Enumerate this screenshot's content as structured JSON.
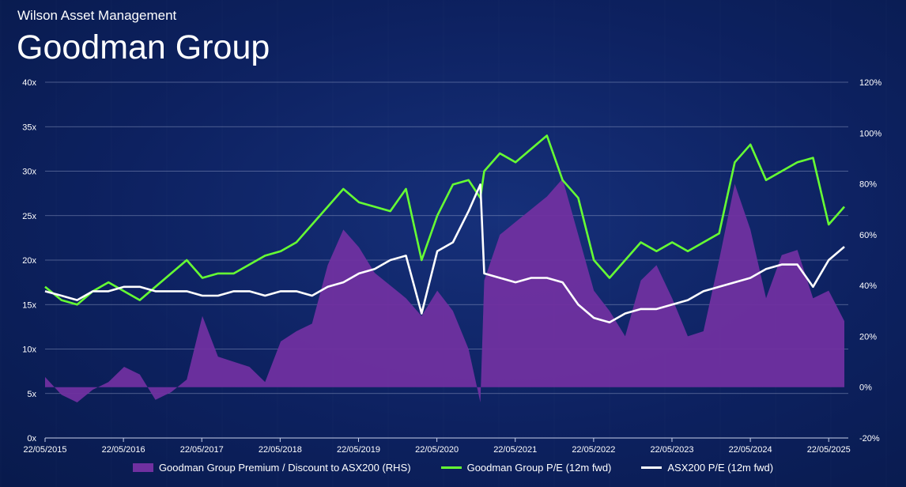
{
  "header": {
    "firm": "Wilson Asset Management",
    "title": "Goodman Group"
  },
  "colors": {
    "premium": "#7030a0",
    "gmg_pe": "#66ff33",
    "asx_pe": "#ffffff",
    "grid": "#9aa6cc"
  },
  "chart_data": {
    "type": "line",
    "x_ticks": [
      "22/05/2015",
      "22/05/2016",
      "22/05/2017",
      "22/05/2018",
      "22/05/2019",
      "22/05/2020",
      "22/05/2021",
      "22/05/2022",
      "22/05/2023",
      "22/05/2024",
      "22/05/2025"
    ],
    "x_range": [
      2015.39,
      2025.65
    ],
    "y_left": {
      "ticks": [
        "0x",
        "5x",
        "10x",
        "15x",
        "20x",
        "25x",
        "30x",
        "35x",
        "40x"
      ],
      "range": [
        0,
        40
      ]
    },
    "y_right": {
      "ticks": [
        "-20%",
        "0%",
        "20%",
        "40%",
        "60%",
        "80%",
        "100%",
        "120%"
      ],
      "range": [
        -20,
        120
      ]
    },
    "grid": true,
    "legend_position": "bottom",
    "series": [
      {
        "name": "Goodman Group Premium / Discount to ASX200 (RHS)",
        "type": "area",
        "axis": "right",
        "x": [
          2015.39,
          2015.6,
          2015.8,
          2016.0,
          2016.2,
          2016.4,
          2016.6,
          2016.8,
          2017.0,
          2017.2,
          2017.4,
          2017.6,
          2017.8,
          2018.0,
          2018.2,
          2018.4,
          2018.6,
          2018.8,
          2019.0,
          2019.2,
          2019.4,
          2019.6,
          2019.8,
          2020.0,
          2020.2,
          2020.4,
          2020.6,
          2020.8,
          2020.95,
          2021.0,
          2021.2,
          2021.4,
          2021.6,
          2021.8,
          2022.0,
          2022.2,
          2022.4,
          2022.6,
          2022.8,
          2023.0,
          2023.2,
          2023.4,
          2023.6,
          2023.8,
          2024.0,
          2024.2,
          2024.4,
          2024.6,
          2024.8,
          2025.0,
          2025.2,
          2025.4,
          2025.6
        ],
        "values": [
          4,
          -3,
          -6,
          -1,
          2,
          8,
          5,
          -5,
          -2,
          3,
          28,
          12,
          10,
          8,
          2,
          18,
          22,
          25,
          48,
          62,
          55,
          45,
          40,
          35,
          28,
          38,
          30,
          15,
          -6,
          42,
          60,
          65,
          70,
          75,
          82,
          60,
          38,
          30,
          20,
          42,
          48,
          35,
          20,
          22,
          50,
          80,
          62,
          35,
          52,
          54,
          35,
          38,
          26
        ]
      },
      {
        "name": "Goodman Group P/E (12m fwd)",
        "type": "line",
        "axis": "left",
        "x": [
          2015.39,
          2015.6,
          2015.8,
          2016.0,
          2016.2,
          2016.4,
          2016.6,
          2016.8,
          2017.0,
          2017.2,
          2017.4,
          2017.6,
          2017.8,
          2018.0,
          2018.2,
          2018.4,
          2018.6,
          2018.8,
          2019.0,
          2019.2,
          2019.4,
          2019.6,
          2019.8,
          2020.0,
          2020.2,
          2020.4,
          2020.6,
          2020.8,
          2020.95,
          2021.0,
          2021.2,
          2021.4,
          2021.6,
          2021.8,
          2022.0,
          2022.2,
          2022.4,
          2022.6,
          2022.8,
          2023.0,
          2023.2,
          2023.4,
          2023.6,
          2023.8,
          2024.0,
          2024.2,
          2024.4,
          2024.6,
          2024.8,
          2025.0,
          2025.2,
          2025.4,
          2025.6
        ],
        "values": [
          17,
          15.5,
          15,
          16.5,
          17.5,
          16.5,
          15.5,
          17,
          18.5,
          20,
          18,
          18.5,
          18.5,
          19.5,
          20.5,
          21,
          22,
          24,
          26,
          28,
          26.5,
          26,
          25.5,
          28,
          20,
          25,
          28.5,
          29,
          27,
          30,
          32,
          31,
          32.5,
          34,
          29,
          27,
          20,
          18,
          20,
          22,
          21,
          22,
          21,
          22,
          23,
          31,
          33,
          29,
          30,
          31,
          31.5,
          24,
          26
        ]
      },
      {
        "name": "ASX200 P/E (12m fwd)",
        "type": "line",
        "axis": "left",
        "x": [
          2015.39,
          2015.6,
          2015.8,
          2016.0,
          2016.2,
          2016.4,
          2016.6,
          2016.8,
          2017.0,
          2017.2,
          2017.4,
          2017.6,
          2017.8,
          2018.0,
          2018.2,
          2018.4,
          2018.6,
          2018.8,
          2019.0,
          2019.2,
          2019.4,
          2019.6,
          2019.8,
          2020.0,
          2020.2,
          2020.4,
          2020.6,
          2020.8,
          2020.95,
          2021.0,
          2021.2,
          2021.4,
          2021.6,
          2021.8,
          2022.0,
          2022.2,
          2022.4,
          2022.6,
          2022.8,
          2023.0,
          2023.2,
          2023.4,
          2023.6,
          2023.8,
          2024.0,
          2024.2,
          2024.4,
          2024.6,
          2024.8,
          2025.0,
          2025.2,
          2025.4,
          2025.6
        ],
        "values": [
          16.5,
          16,
          15.5,
          16.5,
          16.5,
          17,
          17,
          16.5,
          16.5,
          16.5,
          16,
          16,
          16.5,
          16.5,
          16,
          16.5,
          16.5,
          16,
          17,
          17.5,
          18.5,
          19,
          20,
          20.5,
          14,
          21,
          22,
          25.5,
          28.5,
          18.5,
          18,
          17.5,
          18,
          18,
          17.5,
          15,
          13.5,
          13,
          14,
          14.5,
          14.5,
          15,
          15.5,
          16.5,
          17,
          17.5,
          18,
          19,
          19.5,
          19.5,
          17,
          20,
          21.5
        ]
      }
    ]
  }
}
